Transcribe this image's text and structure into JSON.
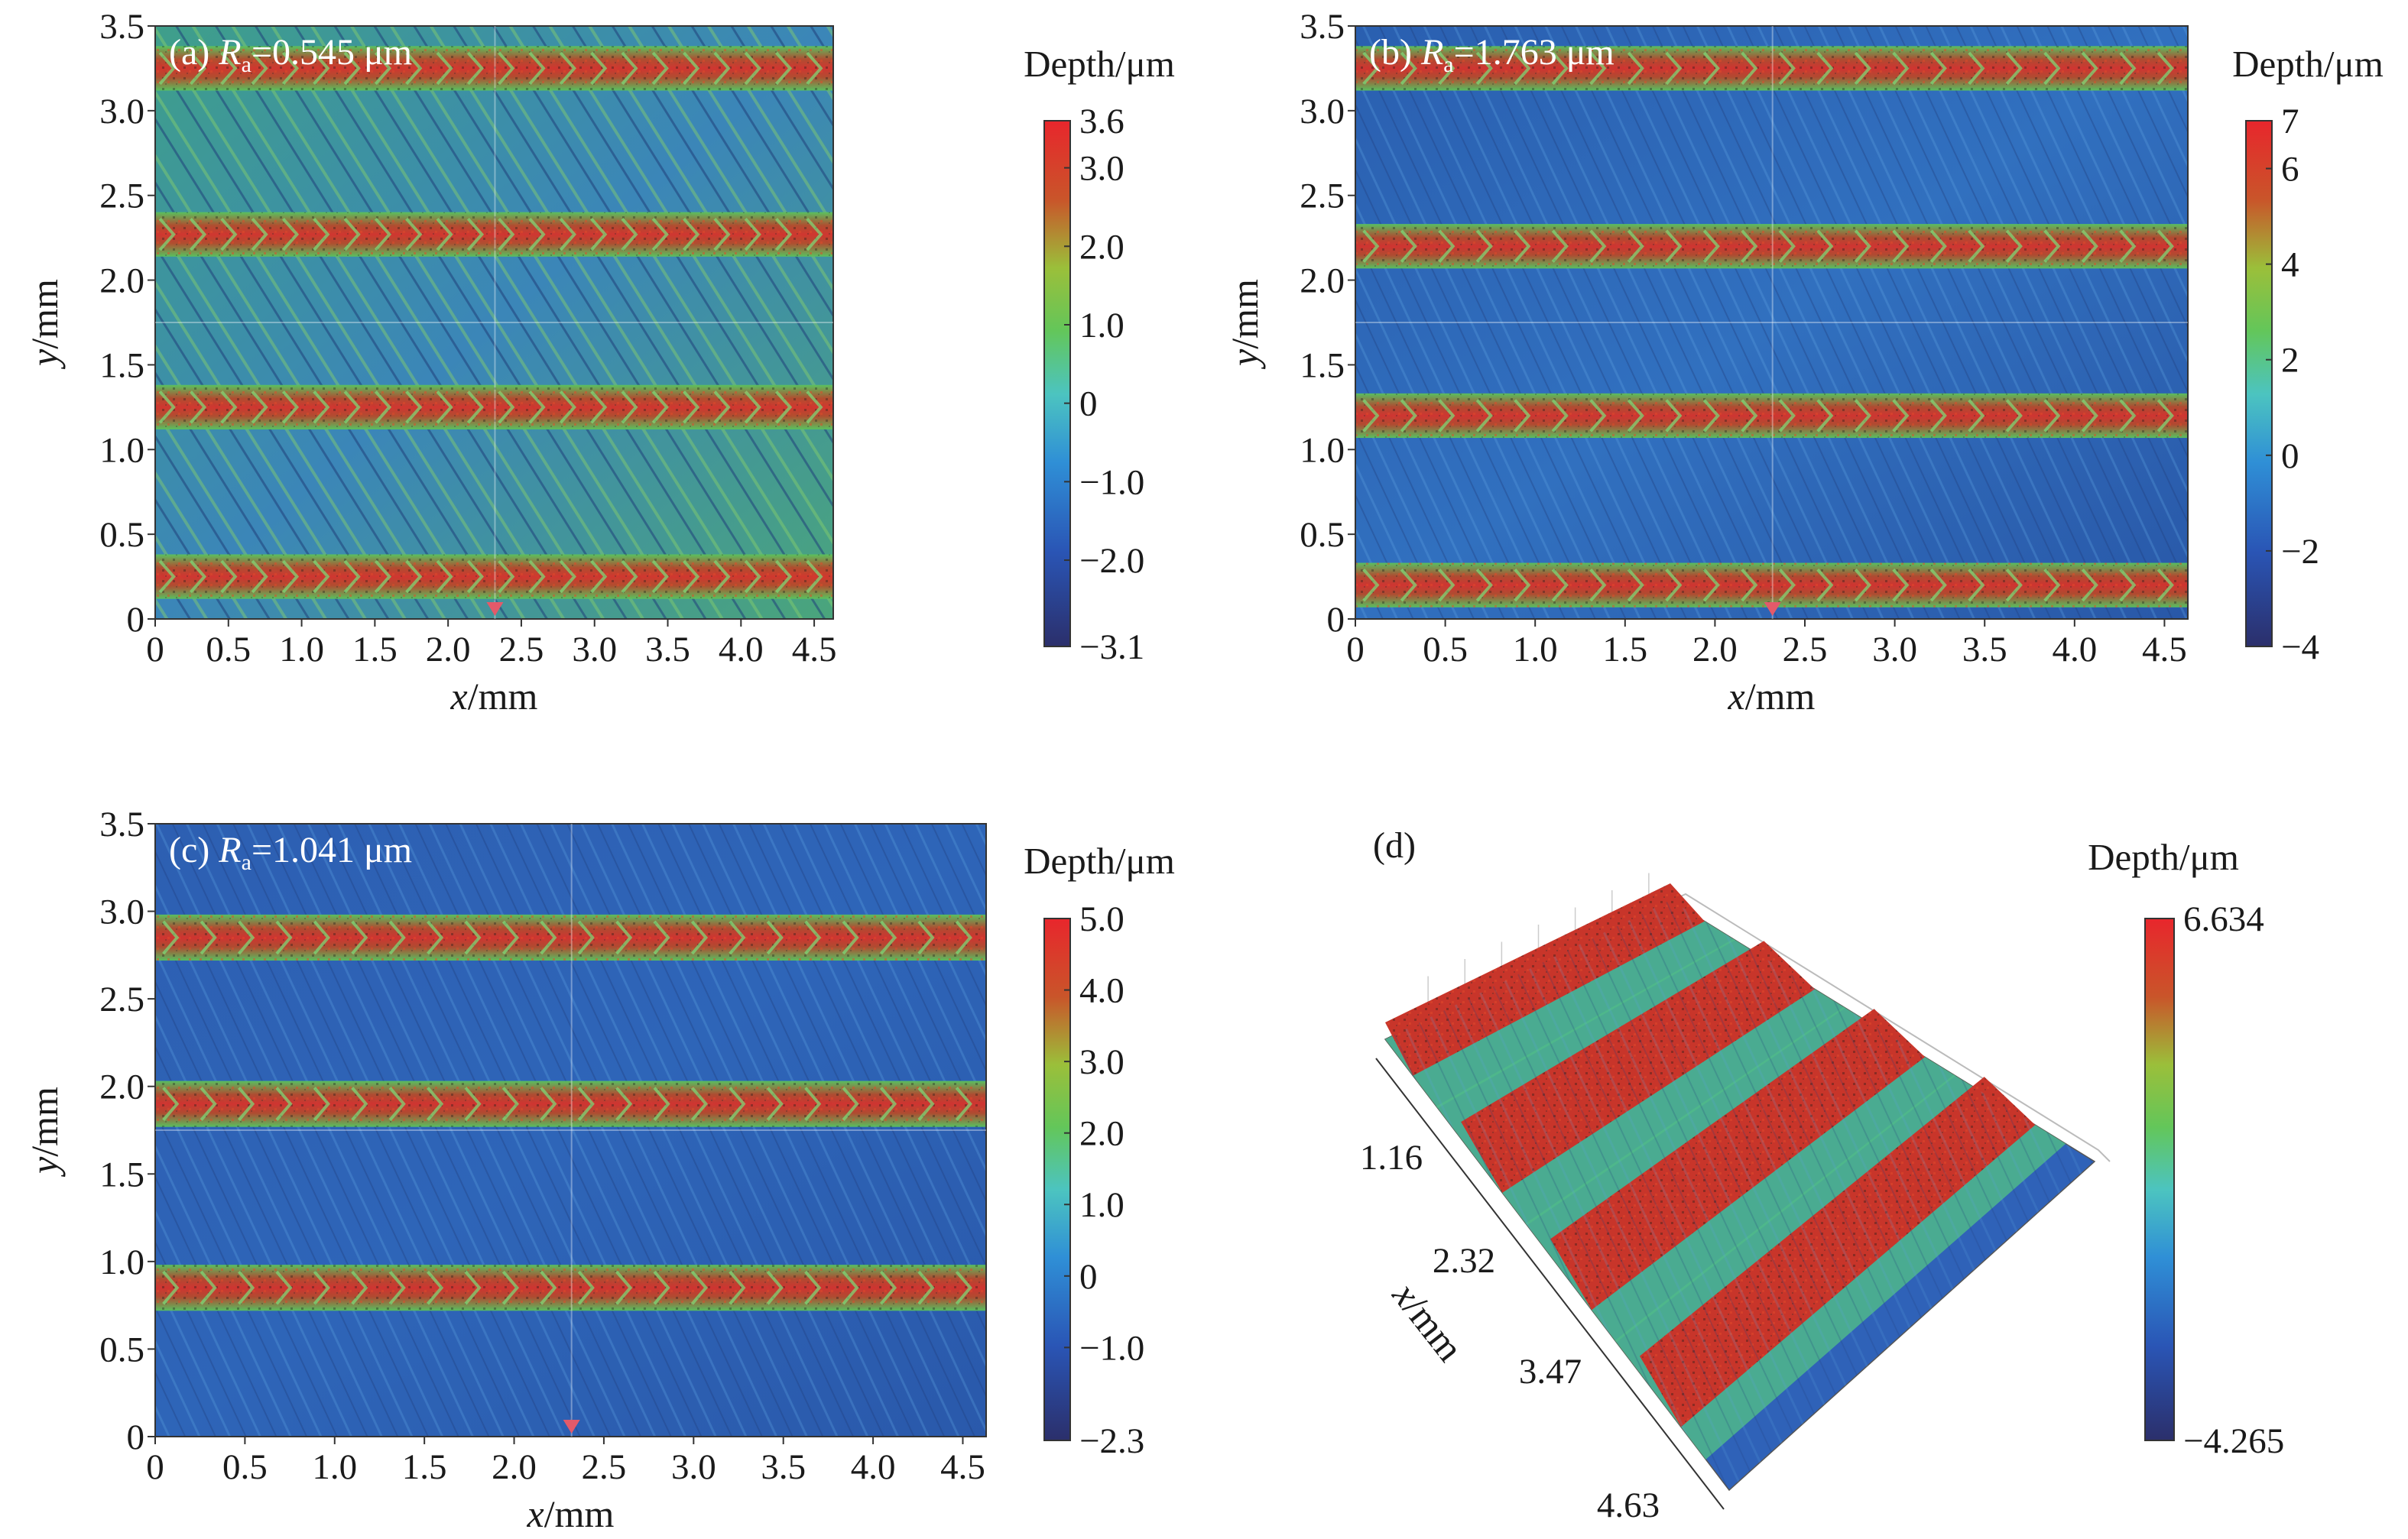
{
  "chart_data": [
    {
      "type": "heatmap",
      "panel": "(a)",
      "label_symbol": "R",
      "label_sub": "a",
      "label_value": "=0.545 μm",
      "xlabel_var": "x",
      "xlabel_unit": "/mm",
      "ylabel_var": "y",
      "ylabel_unit": "/mm",
      "xlim": [
        0,
        4.63
      ],
      "ylim": [
        0,
        3.5
      ],
      "xticks": [
        "0",
        "0.5",
        "1.0",
        "1.5",
        "2.0",
        "2.5",
        "3.0",
        "3.5",
        "4.0",
        "4.5"
      ],
      "yticks": [
        "0",
        "0.5",
        "1.0",
        "1.5",
        "2.0",
        "2.5",
        "3.0",
        "3.5"
      ],
      "colorbar_title": "Depth/μm",
      "colorbar_range": [
        -3.1,
        3.6
      ],
      "colorbar_ticks": [
        "−3.1",
        "−2.0",
        "−1.0",
        "0",
        "1.0",
        "2.0",
        "3.0",
        "3.6"
      ],
      "ridge_y": [
        0.25,
        1.25,
        2.27,
        3.25
      ],
      "background": "green-blue"
    },
    {
      "type": "heatmap",
      "panel": "(b)",
      "label_symbol": "R",
      "label_sub": "a",
      "label_value": "=1.763 μm",
      "xlabel_var": "x",
      "xlabel_unit": "/mm",
      "ylabel_var": "y",
      "ylabel_unit": "/mm",
      "xlim": [
        0,
        4.63
      ],
      "ylim": [
        0,
        3.5
      ],
      "xticks": [
        "0",
        "0.5",
        "1.0",
        "1.5",
        "2.0",
        "2.5",
        "3.0",
        "3.5",
        "4.0",
        "4.5"
      ],
      "yticks": [
        "0",
        "0.5",
        "1.0",
        "1.5",
        "2.0",
        "2.5",
        "3.0",
        "3.5"
      ],
      "colorbar_title": "Depth/μm",
      "colorbar_range": [
        -4,
        7
      ],
      "colorbar_ticks": [
        "−4",
        "−2",
        "0",
        "2",
        "4",
        "6",
        "7"
      ],
      "ridge_y": [
        0.2,
        1.2,
        2.2,
        3.25
      ],
      "background": "blue"
    },
    {
      "type": "heatmap",
      "panel": "(c)",
      "label_symbol": "R",
      "label_sub": "a",
      "label_value": "=1.041 μm",
      "xlabel_var": "x",
      "xlabel_unit": "/mm",
      "ylabel_var": "y",
      "ylabel_unit": "/mm",
      "xlim": [
        0,
        4.63
      ],
      "ylim": [
        0,
        3.5
      ],
      "xticks": [
        "0",
        "0.5",
        "1.0",
        "1.5",
        "2.0",
        "2.5",
        "3.0",
        "3.5",
        "4.0",
        "4.5"
      ],
      "yticks": [
        "0",
        "0.5",
        "1.0",
        "1.5",
        "2.0",
        "2.5",
        "3.0",
        "3.5"
      ],
      "colorbar_title": "Depth/μm",
      "colorbar_range": [
        -2.3,
        5.0
      ],
      "colorbar_ticks": [
        "−2.3",
        "−1.0",
        "0",
        "1.0",
        "2.0",
        "3.0",
        "4.0",
        "5.0"
      ],
      "ridge_y": [
        0.85,
        1.9,
        2.85
      ],
      "background": "blue"
    },
    {
      "type": "surface3d",
      "panel": "(d)",
      "xlabel_var": "x",
      "xlabel_unit": "/mm",
      "xticks": [
        "1.16",
        "2.32",
        "3.47",
        "4.63"
      ],
      "colorbar_title": "Depth/μm",
      "colorbar_range": [
        -4.265,
        6.634
      ],
      "colorbar_ticks": [
        "−4.265",
        "6.634"
      ],
      "ridge_count": 4
    }
  ]
}
